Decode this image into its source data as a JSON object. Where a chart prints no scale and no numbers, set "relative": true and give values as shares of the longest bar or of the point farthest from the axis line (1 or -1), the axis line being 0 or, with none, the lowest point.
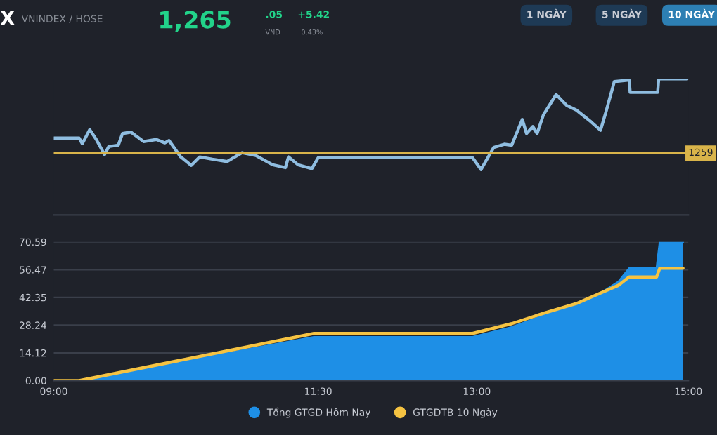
{
  "chart_data": [
    {
      "type": "line",
      "title": "VNINDEX / HOSE",
      "relative": true,
      "grid": false,
      "xlim": [
        9,
        15
      ],
      "annotations": [
        "X",
        "1,265",
        ".05",
        "VND",
        "+5.42",
        "0.43%",
        "1 NGÀY",
        "5 NGÀY",
        "10 NGÀY",
        "1259"
      ],
      "x": [
        9.0,
        9.24,
        9.27,
        9.34,
        9.4,
        9.48,
        9.52,
        9.61,
        9.65,
        9.73,
        9.85,
        9.97,
        10.05,
        10.09,
        10.2,
        10.3,
        10.38,
        10.5,
        10.64,
        10.78,
        10.91,
        11.07,
        11.19,
        11.22,
        11.31,
        11.44,
        11.5,
        12.96,
        13.04,
        13.16,
        13.26,
        13.33,
        13.43,
        13.47,
        13.53,
        13.57,
        13.63,
        13.75,
        13.85,
        13.94,
        14.08,
        14.17,
        14.22,
        14.3,
        14.44,
        14.45,
        14.71,
        14.72,
        14.99
      ],
      "series": [
        {
          "color": "#8fbde0",
          "values": [
            0.564,
            0.564,
            0.523,
            0.626,
            0.557,
            0.443,
            0.502,
            0.512,
            0.598,
            0.608,
            0.539,
            0.554,
            0.529,
            0.546,
            0.426,
            0.364,
            0.426,
            0.409,
            0.392,
            0.457,
            0.436,
            0.368,
            0.347,
            0.426,
            0.368,
            0.34,
            0.42,
            0.42,
            0.333,
            0.495,
            0.519,
            0.512,
            0.701,
            0.598,
            0.649,
            0.598,
            0.735,
            0.884,
            0.804,
            0.77,
            0.684,
            0.622,
            0.753,
            0.979,
            0.99,
            0.9,
            0.9,
            1.0,
            1.0
          ]
        }
      ],
      "ref_lines": [
        {
          "axis": "y",
          "value": 0.454,
          "color": "#d9b44a"
        }
      ]
    },
    {
      "type": "area",
      "xlim": [
        9,
        15
      ],
      "ylim": [
        0,
        70.59
      ],
      "grid": "y",
      "legend": "bottom",
      "xticks": [
        {
          "value": 9,
          "label": "09:00"
        },
        {
          "value": 11.5,
          "label": "11:30"
        },
        {
          "value": 13,
          "label": "13:00"
        },
        {
          "value": 15,
          "label": "15:00"
        }
      ],
      "yticks": [
        {
          "value": 0,
          "label": "0.00"
        },
        {
          "value": 14.12,
          "label": "14.12"
        },
        {
          "value": 28.24,
          "label": "28.24"
        },
        {
          "value": 42.35,
          "label": "42.35"
        },
        {
          "value": 56.47,
          "label": "56.47"
        },
        {
          "value": 70.59,
          "label": "70.59"
        }
      ],
      "series": [
        {
          "name": "Tổng GTGD Hôm Nay",
          "color": "#1e8fe6",
          "x": [
            9.0,
            9.24,
            11.46,
            12.96,
            13.33,
            13.65,
            13.94,
            14.18,
            14.34,
            14.44,
            14.7,
            14.73,
            14.95
          ],
          "values": [
            0,
            0,
            22.2,
            22.2,
            27.2,
            33.5,
            39.2,
            44.8,
            50.4,
            57.2,
            57.2,
            70.5,
            70.5
          ]
        },
        {
          "name": "GTGDTB 10 Ngày",
          "type": "line",
          "color": "#f5c342",
          "x": [
            9.0,
            9.24,
            11.46,
            12.96,
            13.33,
            13.65,
            13.94,
            14.18,
            14.34,
            14.44,
            14.7,
            14.73,
            14.95
          ],
          "values": [
            0,
            0,
            24.0,
            24.0,
            29.0,
            34.6,
            39.2,
            44.8,
            48.5,
            52.7,
            52.7,
            57.2,
            57.2
          ]
        }
      ]
    }
  ]
}
